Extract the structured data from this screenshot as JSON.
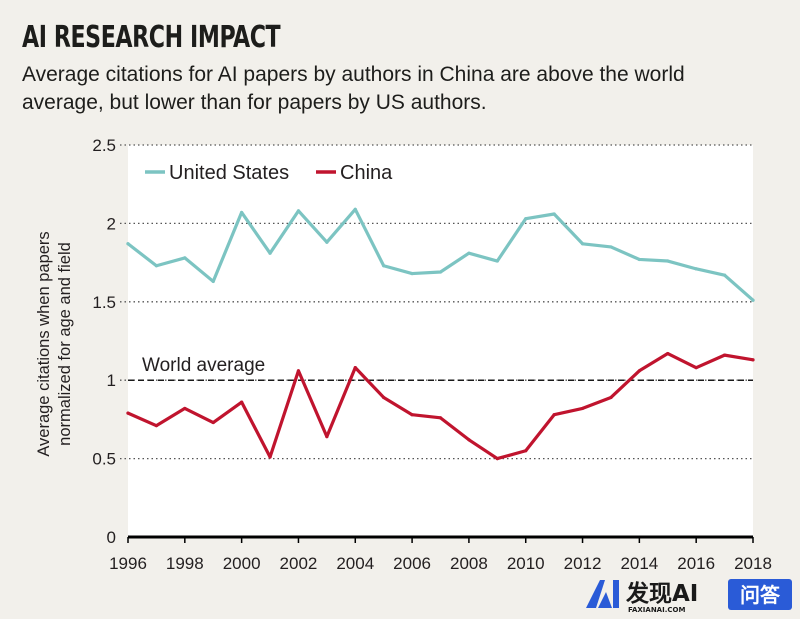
{
  "header": {
    "title": "AI RESEARCH IMPACT",
    "subtitle": "Average citations for AI papers by authors in China are above the world average, but lower than for papers by US authors."
  },
  "colors": {
    "us": "#7cc4c2",
    "china": "#c0142e",
    "plot_bg": "#ffffff",
    "page_bg": "#f2f0eb"
  },
  "chart_data": {
    "type": "line",
    "title": "AI RESEARCH IMPACT",
    "subtitle": "Average citations for AI papers by authors in China are above the world average, but lower than for papers by US authors.",
    "xlabel": "",
    "ylabel": "Average citations when papers normalized for age and field",
    "ylabel_lines": [
      "Average citations when papers",
      "normalized for age and field"
    ],
    "x": [
      1996,
      1997,
      1998,
      1999,
      2000,
      2001,
      2002,
      2003,
      2004,
      2005,
      2006,
      2007,
      2008,
      2009,
      2010,
      2011,
      2012,
      2013,
      2014,
      2015,
      2016,
      2017,
      2018
    ],
    "xticks": [
      1996,
      1998,
      2000,
      2002,
      2004,
      2006,
      2008,
      2010,
      2012,
      2014,
      2016,
      2018
    ],
    "yticks": [
      {
        "value": 0,
        "label": "0"
      },
      {
        "value": 0.5,
        "label": "0.5"
      },
      {
        "value": 1,
        "label": "1"
      },
      {
        "value": 1.5,
        "label": "1.5"
      },
      {
        "value": 2,
        "label": "2"
      },
      {
        "value": 2.5,
        "label": "2.5"
      }
    ],
    "xlim": [
      1996,
      2018
    ],
    "ylim": [
      0,
      2.5
    ],
    "grid": "dotted horizontal",
    "legend_position": "top-left",
    "series": [
      {
        "name": "United States",
        "color": "#7cc4c2",
        "values": [
          1.87,
          1.73,
          1.78,
          1.63,
          2.07,
          1.81,
          2.08,
          1.88,
          2.09,
          1.73,
          1.68,
          1.69,
          1.81,
          1.76,
          2.03,
          2.06,
          1.87,
          1.85,
          1.77,
          1.76,
          1.71,
          1.67,
          1.51
        ]
      },
      {
        "name": "China",
        "color": "#c0142e",
        "values": [
          0.79,
          0.71,
          0.82,
          0.73,
          0.86,
          0.51,
          1.06,
          0.64,
          1.08,
          0.89,
          0.78,
          0.76,
          0.62,
          0.5,
          0.55,
          0.78,
          0.82,
          0.89,
          1.06,
          1.17,
          1.08,
          1.16,
          1.13
        ]
      }
    ],
    "reference_lines": [
      {
        "value": 1,
        "label": "World average",
        "style": "dashed"
      }
    ]
  },
  "watermark": {
    "brand": "发现AI",
    "domain": "FAXIANAI.COM",
    "tag": "问答"
  }
}
